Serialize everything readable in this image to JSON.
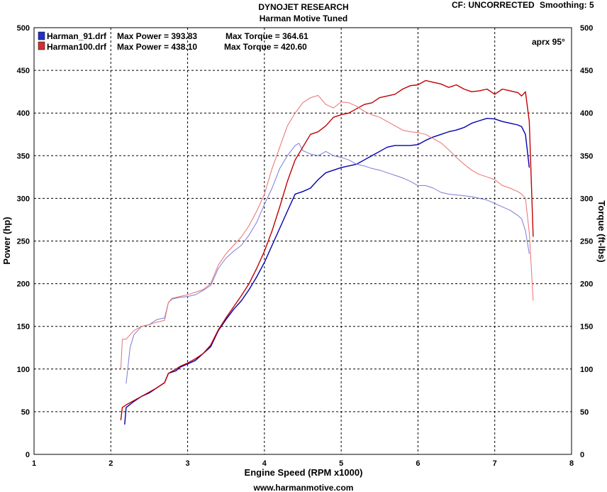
{
  "header": {
    "title": "DYNOJET RESEARCH",
    "subtitle": "Harman Motive Tuned",
    "cf": "CF: UNCORRECTED",
    "smoothing": "Smoothing: 5"
  },
  "footer": {
    "url": "www.harmanmotive.com"
  },
  "annotation": "aprx 95°",
  "colors": {
    "blue": "#0000b0",
    "red": "#c00000",
    "blue_light": "#7a7ad8",
    "red_light": "#e87070"
  },
  "legend": [
    {
      "file": "Harman_91.drf",
      "max_power": "Max Power = 393.83",
      "max_torque": "Max Torque = 364.61",
      "color": "#2030c8"
    },
    {
      "file": "Harman100.drf",
      "max_power": "Max Power = 438.10",
      "max_torque": "Max Torque = 420.60",
      "color": "#d03030"
    }
  ],
  "chart_data": {
    "type": "line",
    "title": "DYNOJET RESEARCH",
    "subtitle": "Harman Motive Tuned",
    "xlabel": "Engine Speed (RPM x1000)",
    "ylabel": "Power (hp)",
    "y2label": "Torque (ft-lbs)",
    "xlim": [
      1,
      8
    ],
    "ylim": [
      0,
      500
    ],
    "y2lim": [
      0,
      500
    ],
    "xticks": [
      "1",
      "2",
      "3",
      "4",
      "5",
      "6",
      "7",
      "8"
    ],
    "yticks": [
      "0",
      "50",
      "100",
      "150",
      "200",
      "250",
      "300",
      "350",
      "400",
      "450",
      "500"
    ],
    "grid": true,
    "legend_position": "top-left",
    "series": [
      {
        "name": "Harman_91.drf",
        "kind": "power",
        "color": "#0000b0",
        "points": [
          [
            2.18,
            35
          ],
          [
            2.2,
            55
          ],
          [
            2.3,
            62
          ],
          [
            2.4,
            68
          ],
          [
            2.5,
            72
          ],
          [
            2.6,
            78
          ],
          [
            2.7,
            84
          ],
          [
            2.75,
            95
          ],
          [
            2.85,
            98
          ],
          [
            2.9,
            102
          ],
          [
            3.0,
            106
          ],
          [
            3.1,
            110
          ],
          [
            3.2,
            118
          ],
          [
            3.3,
            126
          ],
          [
            3.4,
            145
          ],
          [
            3.5,
            158
          ],
          [
            3.6,
            170
          ],
          [
            3.7,
            180
          ],
          [
            3.8,
            193
          ],
          [
            3.9,
            208
          ],
          [
            4.0,
            225
          ],
          [
            4.1,
            245
          ],
          [
            4.2,
            265
          ],
          [
            4.3,
            285
          ],
          [
            4.4,
            305
          ],
          [
            4.5,
            308
          ],
          [
            4.6,
            312
          ],
          [
            4.7,
            322
          ],
          [
            4.8,
            330
          ],
          [
            4.9,
            333
          ],
          [
            5.0,
            336
          ],
          [
            5.1,
            338
          ],
          [
            5.2,
            340
          ],
          [
            5.3,
            345
          ],
          [
            5.4,
            350
          ],
          [
            5.5,
            355
          ],
          [
            5.6,
            360
          ],
          [
            5.7,
            362
          ],
          [
            5.8,
            362
          ],
          [
            5.9,
            362
          ],
          [
            6.0,
            363
          ],
          [
            6.1,
            368
          ],
          [
            6.2,
            372
          ],
          [
            6.3,
            375
          ],
          [
            6.4,
            378
          ],
          [
            6.5,
            380
          ],
          [
            6.6,
            383
          ],
          [
            6.7,
            388
          ],
          [
            6.8,
            391
          ],
          [
            6.9,
            393.8
          ],
          [
            7.0,
            393
          ],
          [
            7.1,
            390
          ],
          [
            7.2,
            388
          ],
          [
            7.3,
            386
          ],
          [
            7.35,
            384
          ],
          [
            7.4,
            375
          ],
          [
            7.45,
            336
          ]
        ]
      },
      {
        "name": "Harman_91.drf",
        "kind": "torque",
        "color": "#7a7ad8",
        "points": [
          [
            2.2,
            83
          ],
          [
            2.25,
            125
          ],
          [
            2.3,
            140
          ],
          [
            2.4,
            150
          ],
          [
            2.5,
            152
          ],
          [
            2.6,
            158
          ],
          [
            2.7,
            160
          ],
          [
            2.75,
            178
          ],
          [
            2.8,
            182
          ],
          [
            2.9,
            184
          ],
          [
            3.0,
            185
          ],
          [
            3.1,
            187
          ],
          [
            3.2,
            192
          ],
          [
            3.3,
            198
          ],
          [
            3.4,
            218
          ],
          [
            3.5,
            230
          ],
          [
            3.6,
            238
          ],
          [
            3.7,
            245
          ],
          [
            3.8,
            257
          ],
          [
            3.9,
            272
          ],
          [
            4.0,
            293
          ],
          [
            4.1,
            312
          ],
          [
            4.2,
            335
          ],
          [
            4.3,
            350
          ],
          [
            4.4,
            362
          ],
          [
            4.45,
            364.6
          ],
          [
            4.5,
            356
          ],
          [
            4.6,
            352
          ],
          [
            4.7,
            350
          ],
          [
            4.8,
            355
          ],
          [
            4.9,
            350
          ],
          [
            5.0,
            348
          ],
          [
            5.1,
            345
          ],
          [
            5.2,
            340
          ],
          [
            5.3,
            338
          ],
          [
            5.4,
            335
          ],
          [
            5.5,
            333
          ],
          [
            5.6,
            330
          ],
          [
            5.7,
            327
          ],
          [
            5.8,
            324
          ],
          [
            5.9,
            320
          ],
          [
            6.0,
            315
          ],
          [
            6.1,
            315
          ],
          [
            6.2,
            312
          ],
          [
            6.3,
            307
          ],
          [
            6.4,
            305
          ],
          [
            6.5,
            304
          ],
          [
            6.6,
            303
          ],
          [
            6.7,
            302
          ],
          [
            6.8,
            300
          ],
          [
            6.9,
            298
          ],
          [
            7.0,
            294
          ],
          [
            7.1,
            290
          ],
          [
            7.2,
            286
          ],
          [
            7.3,
            280
          ],
          [
            7.35,
            276
          ],
          [
            7.4,
            262
          ],
          [
            7.45,
            235
          ]
        ]
      },
      {
        "name": "Harman100.drf",
        "kind": "power",
        "color": "#c00000",
        "points": [
          [
            2.13,
            40
          ],
          [
            2.15,
            55
          ],
          [
            2.2,
            58
          ],
          [
            2.3,
            63
          ],
          [
            2.4,
            68
          ],
          [
            2.5,
            73
          ],
          [
            2.6,
            78
          ],
          [
            2.7,
            84
          ],
          [
            2.75,
            95
          ],
          [
            2.85,
            100
          ],
          [
            2.9,
            103
          ],
          [
            3.0,
            107
          ],
          [
            3.1,
            112
          ],
          [
            3.2,
            118
          ],
          [
            3.3,
            128
          ],
          [
            3.4,
            146
          ],
          [
            3.5,
            160
          ],
          [
            3.6,
            173
          ],
          [
            3.7,
            186
          ],
          [
            3.8,
            200
          ],
          [
            3.9,
            218
          ],
          [
            4.0,
            238
          ],
          [
            4.1,
            262
          ],
          [
            4.2,
            290
          ],
          [
            4.3,
            320
          ],
          [
            4.4,
            345
          ],
          [
            4.5,
            360
          ],
          [
            4.6,
            375
          ],
          [
            4.7,
            378
          ],
          [
            4.8,
            385
          ],
          [
            4.9,
            395
          ],
          [
            5.0,
            398
          ],
          [
            5.1,
            400
          ],
          [
            5.2,
            405
          ],
          [
            5.3,
            410
          ],
          [
            5.4,
            412
          ],
          [
            5.5,
            418
          ],
          [
            5.6,
            420
          ],
          [
            5.7,
            422
          ],
          [
            5.8,
            428
          ],
          [
            5.9,
            432
          ],
          [
            6.0,
            433
          ],
          [
            6.1,
            438.1
          ],
          [
            6.2,
            436
          ],
          [
            6.3,
            434
          ],
          [
            6.4,
            430
          ],
          [
            6.5,
            433
          ],
          [
            6.6,
            428
          ],
          [
            6.7,
            425
          ],
          [
            6.8,
            426
          ],
          [
            6.9,
            428
          ],
          [
            7.0,
            422
          ],
          [
            7.1,
            428
          ],
          [
            7.2,
            426
          ],
          [
            7.3,
            424
          ],
          [
            7.35,
            420
          ],
          [
            7.4,
            425
          ],
          [
            7.45,
            390
          ],
          [
            7.5,
            255
          ]
        ]
      },
      {
        "name": "Harman100.drf",
        "kind": "torque",
        "color": "#e87070",
        "points": [
          [
            2.13,
            100
          ],
          [
            2.15,
            135
          ],
          [
            2.2,
            135
          ],
          [
            2.3,
            145
          ],
          [
            2.4,
            150
          ],
          [
            2.5,
            152
          ],
          [
            2.6,
            155
          ],
          [
            2.7,
            157
          ],
          [
            2.75,
            178
          ],
          [
            2.8,
            183
          ],
          [
            2.9,
            185
          ],
          [
            3.0,
            187
          ],
          [
            3.1,
            190
          ],
          [
            3.2,
            193
          ],
          [
            3.3,
            200
          ],
          [
            3.4,
            222
          ],
          [
            3.5,
            235
          ],
          [
            3.6,
            245
          ],
          [
            3.7,
            255
          ],
          [
            3.8,
            268
          ],
          [
            3.9,
            285
          ],
          [
            4.0,
            305
          ],
          [
            4.1,
            335
          ],
          [
            4.2,
            360
          ],
          [
            4.3,
            385
          ],
          [
            4.4,
            400
          ],
          [
            4.5,
            412
          ],
          [
            4.6,
            418
          ],
          [
            4.7,
            420.6
          ],
          [
            4.8,
            410
          ],
          [
            4.9,
            406
          ],
          [
            5.0,
            413
          ],
          [
            5.1,
            412
          ],
          [
            5.2,
            408
          ],
          [
            5.3,
            402
          ],
          [
            5.4,
            398
          ],
          [
            5.5,
            395
          ],
          [
            5.6,
            390
          ],
          [
            5.7,
            385
          ],
          [
            5.8,
            380
          ],
          [
            5.9,
            378
          ],
          [
            6.0,
            377
          ],
          [
            6.1,
            375
          ],
          [
            6.2,
            370
          ],
          [
            6.3,
            365
          ],
          [
            6.4,
            357
          ],
          [
            6.5,
            348
          ],
          [
            6.6,
            340
          ],
          [
            6.7,
            333
          ],
          [
            6.8,
            328
          ],
          [
            6.9,
            325
          ],
          [
            7.0,
            322
          ],
          [
            7.1,
            315
          ],
          [
            7.2,
            312
          ],
          [
            7.3,
            308
          ],
          [
            7.35,
            305
          ],
          [
            7.4,
            300
          ],
          [
            7.45,
            260
          ],
          [
            7.5,
            180
          ]
        ]
      }
    ]
  }
}
